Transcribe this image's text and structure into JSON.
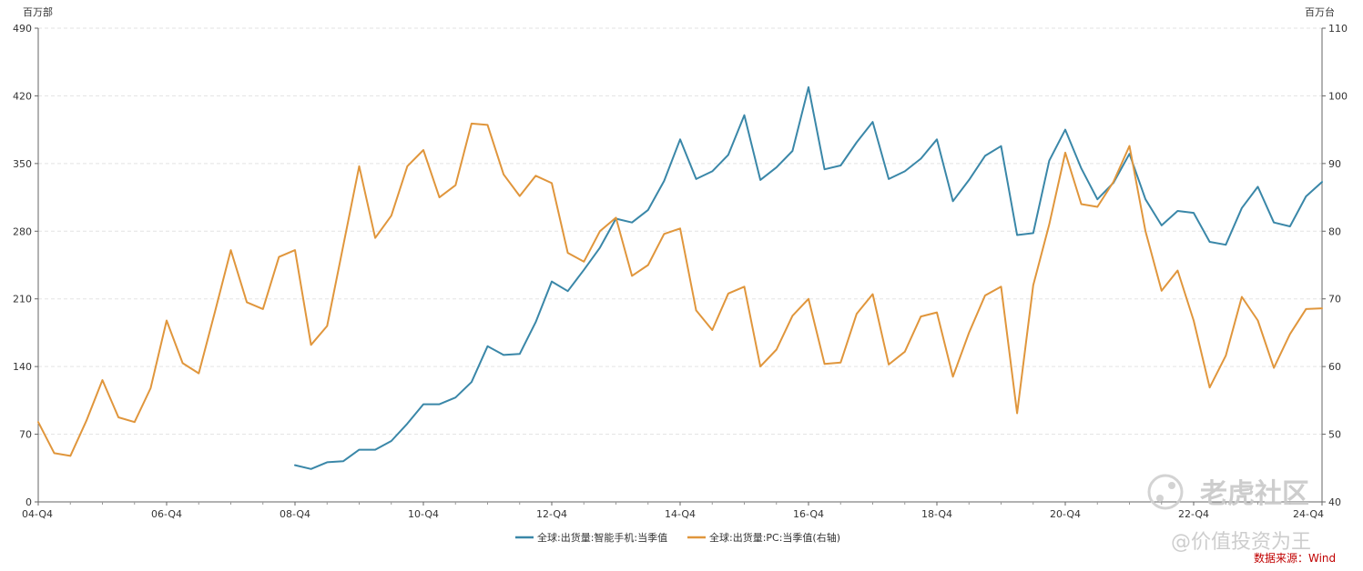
{
  "chart_data": {
    "type": "line",
    "left_axis_unit": "百万部",
    "right_axis_unit": "百万台",
    "y_left": {
      "min": 0,
      "max": 490,
      "ticks": [
        0,
        70,
        140,
        210,
        280,
        350,
        420,
        490
      ]
    },
    "y_right": {
      "min": 40,
      "max": 110,
      "ticks": [
        40,
        50,
        60,
        70,
        80,
        90,
        100,
        110
      ]
    },
    "x_start_quarter": "04-Q4",
    "x_count": 81,
    "x_tick_labels": [
      "04-Q4",
      "06-Q4",
      "08-Q4",
      "10-Q4",
      "12-Q4",
      "14-Q4",
      "16-Q4",
      "18-Q4",
      "20-Q4",
      "22-Q4",
      "24-Q4"
    ],
    "series": [
      {
        "name": "全球:出货量:智能手机:当季值",
        "axis": "left",
        "color": "#3a87a8",
        "start_index": 16,
        "values": [
          38,
          34,
          41,
          42,
          54,
          54,
          63,
          81,
          101,
          101,
          108,
          124,
          161,
          152,
          153,
          186,
          228,
          218,
          240,
          263,
          293,
          289,
          302,
          332,
          375,
          334,
          342,
          359,
          400,
          333,
          346,
          363,
          429,
          344,
          348,
          372,
          393,
          334,
          342,
          355,
          375,
          311,
          333,
          358,
          368,
          276,
          278,
          353,
          385,
          345,
          313,
          330,
          360,
          313,
          286,
          301,
          299,
          269,
          266,
          304,
          326,
          289,
          285,
          316,
          331
        ]
      },
      {
        "name": "全球:出货量:PC:当季值(右轴)",
        "axis": "right",
        "color": "#e0963c",
        "start_index": 0,
        "values": [
          51.8,
          47.2,
          46.8,
          52.0,
          58.0,
          52.5,
          51.8,
          56.8,
          66.8,
          60.5,
          59.0,
          68.0,
          77.2,
          69.5,
          68.5,
          76.2,
          77.2,
          63.2,
          66.0,
          77.8,
          89.6,
          79.0,
          82.3,
          89.6,
          92.0,
          85.0,
          86.8,
          95.9,
          95.7,
          88.4,
          85.2,
          88.2,
          87.1,
          76.8,
          75.5,
          80.0,
          82.0,
          73.4,
          75.0,
          79.6,
          80.4,
          68.3,
          65.4,
          70.8,
          71.8,
          60.0,
          62.5,
          67.5,
          70.0,
          60.4,
          60.6,
          67.8,
          70.7,
          60.3,
          62.2,
          67.4,
          68.0,
          58.5,
          65.0,
          70.5,
          71.8,
          53.1,
          72.0,
          81.0,
          91.6,
          84.0,
          83.6,
          87.3,
          92.6,
          80.0,
          71.2,
          74.2,
          66.8,
          56.9,
          61.6,
          70.3,
          66.8,
          59.8,
          64.8,
          68.5,
          68.6
        ]
      }
    ]
  },
  "source_text": "数据来源：Wind",
  "watermark": {
    "site": "老虎社区",
    "author": "@价值投资为王"
  }
}
